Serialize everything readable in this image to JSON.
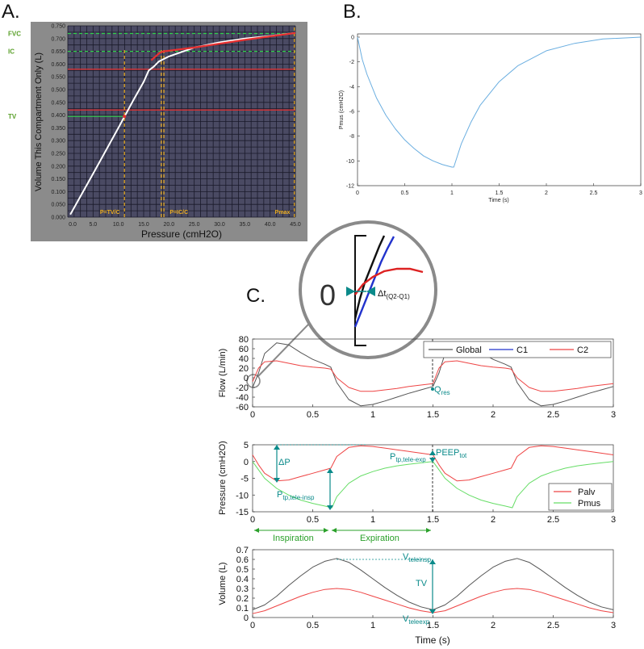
{
  "panels": {
    "a": {
      "letter": "A."
    },
    "b": {
      "letter": "B."
    },
    "c": {
      "letter": "C."
    }
  },
  "colors": {
    "panel_a_bg": "#4a4a63",
    "panel_a_frame": "#8b8b8b",
    "grid_a": "#1a1a2a",
    "red": "#e83030",
    "green": "#2fd04a",
    "orange": "#f0b020",
    "white": "#ffffff",
    "blue_line": "#6aaee0",
    "teal": "#0a8a8a",
    "global": "#555555",
    "palv": "#ee4444",
    "pmus": "#66dd66"
  },
  "chart_data": [
    {
      "id": "A",
      "type": "line",
      "title": "",
      "xlabel": "Pressure (cmH2O)",
      "ylabel": "Volume This Compartment Only (L)",
      "xlim": [
        0,
        45
      ],
      "ylim": [
        0,
        0.75
      ],
      "xticks": [
        "0.0",
        "5.0",
        "10.0",
        "15.0",
        "20.0",
        "25.0",
        "30.0",
        "35.0",
        "40.0",
        "45.0"
      ],
      "yticks": [
        "0.000",
        "0.050",
        "0.100",
        "0.150",
        "0.200",
        "0.250",
        "0.300",
        "0.350",
        "0.400",
        "0.450",
        "0.500",
        "0.550",
        "0.600",
        "0.650",
        "0.700",
        "0.750"
      ],
      "side_labels": [
        {
          "text": "FVC",
          "y": 0.72
        },
        {
          "text": "IC",
          "y": 0.65
        },
        {
          "text": "TV",
          "y": 0.395
        }
      ],
      "markers": [
        {
          "text": "P=TV/C",
          "x": 11.2
        },
        {
          "text": "P=IC/C",
          "x": 18.8
        },
        {
          "text": "Pmax",
          "x": 44.5
        }
      ],
      "series": [
        {
          "name": "compliance curve",
          "color": "white",
          "x": [
            0.5,
            5,
            10,
            13,
            15,
            16,
            17,
            18,
            20,
            25,
            30,
            35,
            40,
            45
          ],
          "y": [
            0.01,
            0.17,
            0.35,
            0.46,
            0.53,
            0.575,
            0.59,
            0.61,
            0.63,
            0.665,
            0.685,
            0.7,
            0.71,
            0.722
          ]
        },
        {
          "name": "tidal path",
          "color": "red",
          "x": [
            16.5,
            18.2,
            19.0,
            25,
            35,
            45
          ],
          "y": [
            0.615,
            0.645,
            0.65,
            0.665,
            0.695,
            0.722
          ]
        }
      ],
      "hlines": [
        {
          "y": 0.72,
          "color": "green",
          "style": "dashed"
        },
        {
          "y": 0.65,
          "color": "green",
          "style": "dashed"
        },
        {
          "y": 0.395,
          "color": "green",
          "style": "solid",
          "x_to": 11.2
        },
        {
          "y": 0.58,
          "color": "red"
        },
        {
          "y": 0.42,
          "color": "red"
        }
      ],
      "vlines": [
        {
          "x": 11.2,
          "color": "orange"
        },
        {
          "x": 18.5,
          "color": "orange"
        },
        {
          "x": 19.0,
          "color": "orange"
        },
        {
          "x": 44.8,
          "color": "orange"
        }
      ]
    },
    {
      "id": "B",
      "type": "line",
      "xlabel": "Time (s)",
      "ylabel": "Pmus (cmH2O)",
      "xlim": [
        0,
        3
      ],
      "ylim": [
        -12,
        0
      ],
      "xticks": [
        "0",
        "0.5",
        "1",
        "1.5",
        "2",
        "2.5",
        "3"
      ],
      "yticks": [
        "0",
        "-2",
        "-4",
        "-6",
        "-8",
        "-10",
        "-12"
      ],
      "series": [
        {
          "name": "Pmus",
          "color": "blue_line",
          "x": [
            0,
            0.05,
            0.1,
            0.2,
            0.3,
            0.4,
            0.5,
            0.6,
            0.7,
            0.8,
            0.9,
            1.0,
            1.02,
            1.1,
            1.2,
            1.3,
            1.5,
            1.7,
            2.0,
            2.3,
            2.6,
            3.0
          ],
          "y": [
            0,
            -1.8,
            -3.0,
            -4.9,
            -6.3,
            -7.4,
            -8.3,
            -9.0,
            -9.6,
            -10.0,
            -10.3,
            -10.5,
            -10.5,
            -8.6,
            -6.9,
            -5.5,
            -3.6,
            -2.3,
            -1.1,
            -0.5,
            -0.15,
            0
          ]
        }
      ]
    },
    {
      "id": "C-flow",
      "type": "line",
      "ylabel": "Flow (L/min)",
      "xlim": [
        0,
        3
      ],
      "ylim": [
        -60,
        80
      ],
      "xticks": [
        "0",
        "0.5",
        "1",
        "1.5",
        "2",
        "2.5",
        "3"
      ],
      "yticks": [
        "80",
        "60",
        "40",
        "20",
        "0",
        "-20",
        "-40",
        "-60"
      ],
      "legend": [
        "Global",
        "C1",
        "C2"
      ],
      "annotations": [
        {
          "text": "Q",
          "sub": "res",
          "x": 1.5,
          "y": -18
        }
      ],
      "series": [
        {
          "name": "Global",
          "color": "global",
          "x": [
            0,
            0.05,
            0.1,
            0.2,
            0.3,
            0.4,
            0.5,
            0.6,
            0.65,
            0.7,
            0.8,
            0.9,
            1.0,
            1.1,
            1.2,
            1.3,
            1.4,
            1.5,
            1.55,
            1.6,
            1.7,
            1.8,
            1.9,
            2.0,
            2.1,
            2.15,
            2.2,
            2.3,
            2.4,
            2.5,
            2.6,
            2.7,
            2.8,
            2.9,
            3.0
          ],
          "y": [
            -20,
            10,
            50,
            72,
            68,
            52,
            38,
            28,
            22,
            -10,
            -45,
            -58,
            -55,
            -48,
            -40,
            -32,
            -25,
            -18,
            10,
            50,
            72,
            68,
            52,
            38,
            28,
            22,
            -10,
            -45,
            -58,
            -55,
            -48,
            -40,
            -32,
            -25,
            -18
          ]
        },
        {
          "name": "C2",
          "color": "palv",
          "x": [
            0,
            0.05,
            0.1,
            0.2,
            0.3,
            0.4,
            0.5,
            0.6,
            0.65,
            0.7,
            0.8,
            0.9,
            1.0,
            1.1,
            1.2,
            1.3,
            1.4,
            1.5,
            1.55,
            1.6,
            1.7,
            1.8,
            1.9,
            2.0,
            2.1,
            2.15,
            2.2,
            2.3,
            2.4,
            2.5,
            2.6,
            2.7,
            2.8,
            2.9,
            3.0
          ],
          "y": [
            -8,
            20,
            33,
            35,
            30,
            25,
            22,
            20,
            18,
            0,
            -20,
            -28,
            -28,
            -25,
            -22,
            -18,
            -15,
            -12,
            20,
            33,
            35,
            30,
            25,
            22,
            20,
            18,
            0,
            -20,
            -28,
            -28,
            -25,
            -22,
            -18,
            -15,
            -12
          ]
        }
      ]
    },
    {
      "id": "C-pressure",
      "type": "line",
      "ylabel": "Pressure (cmH2O)",
      "xlim": [
        0,
        3
      ],
      "ylim": [
        -15,
        5
      ],
      "xticks": [
        "0",
        "0.5",
        "1",
        "1.5",
        "2",
        "2.5",
        "3"
      ],
      "yticks": [
        "5",
        "0",
        "-5",
        "-10",
        "-15"
      ],
      "legend": [
        "Palv",
        "Pmus"
      ],
      "annotations": [
        {
          "text": "ΔP"
        },
        {
          "text": "P",
          "sub": "tp,tele-exp"
        },
        {
          "text": "PEEP",
          "sub": "tot"
        },
        {
          "text": "P",
          "sub": "tp,tele-insp"
        }
      ],
      "phases": [
        {
          "text": "Inspiration",
          "from": 0,
          "to": 0.65
        },
        {
          "text": "Expiration",
          "from": 0.65,
          "to": 1.5
        }
      ],
      "series": [
        {
          "name": "Palv",
          "color": "palv",
          "x": [
            0,
            0.05,
            0.1,
            0.2,
            0.3,
            0.4,
            0.5,
            0.6,
            0.65,
            0.7,
            0.8,
            0.9,
            1.0,
            1.1,
            1.2,
            1.3,
            1.4,
            1.5,
            1.55,
            1.6,
            1.7,
            1.8,
            1.9,
            2.0,
            2.1,
            2.15,
            2.2,
            2.3,
            2.4,
            2.5,
            2.6,
            2.7,
            2.8,
            2.9,
            3.0
          ],
          "y": [
            2,
            -1,
            -3.5,
            -5.8,
            -5.5,
            -4.5,
            -3.5,
            -2.5,
            -2,
            1.5,
            4.2,
            4.7,
            4.5,
            4,
            3.5,
            3,
            2.5,
            2,
            -1,
            -3.5,
            -5.8,
            -5.5,
            -4.5,
            -3.5,
            -2.5,
            -2,
            1.5,
            4.2,
            4.7,
            4.5,
            4,
            3.5,
            3,
            2.5,
            2
          ]
        },
        {
          "name": "Pmus",
          "color": "pmus",
          "x": [
            0,
            0.05,
            0.1,
            0.2,
            0.3,
            0.4,
            0.5,
            0.6,
            0.66,
            0.7,
            0.8,
            0.9,
            1.0,
            1.1,
            1.2,
            1.3,
            1.4,
            1.5,
            1.55,
            1.6,
            1.7,
            1.8,
            1.9,
            2.0,
            2.1,
            2.16,
            2.2,
            2.3,
            2.4,
            2.5,
            2.6,
            2.7,
            2.8,
            2.9,
            3.0
          ],
          "y": [
            0,
            -2.5,
            -5,
            -8,
            -10,
            -11.5,
            -12.5,
            -13.3,
            -13.8,
            -10.5,
            -6.5,
            -4.3,
            -3,
            -2,
            -1.3,
            -0.8,
            -0.4,
            0,
            -2.5,
            -5,
            -8,
            -10,
            -11.5,
            -12.5,
            -13.3,
            -13.8,
            -10.5,
            -6.5,
            -4.3,
            -3,
            -2,
            -1.3,
            -0.8,
            -0.4,
            0
          ]
        }
      ]
    },
    {
      "id": "C-volume",
      "type": "line",
      "xlabel": "Time (s)",
      "ylabel": "Volume (L)",
      "xlim": [
        0,
        3
      ],
      "ylim": [
        0,
        0.7
      ],
      "xticks": [
        "0",
        "0.5",
        "1",
        "1.5",
        "2",
        "2.5",
        "3"
      ],
      "yticks": [
        "0.7",
        "0.6",
        "0.5",
        "0.4",
        "0.3",
        "0.2",
        "0.1",
        "0"
      ],
      "annotations": [
        {
          "text": "V",
          "sub": "teleinsp"
        },
        {
          "text": "TV"
        },
        {
          "text": "V",
          "sub": "teleexp"
        }
      ],
      "series": [
        {
          "name": "Global",
          "color": "global",
          "x": [
            0,
            0.1,
            0.2,
            0.3,
            0.4,
            0.5,
            0.6,
            0.7,
            0.8,
            0.9,
            1.0,
            1.1,
            1.2,
            1.3,
            1.4,
            1.5,
            1.6,
            1.7,
            1.8,
            1.9,
            2.0,
            2.1,
            2.2,
            2.3,
            2.4,
            2.5,
            2.6,
            2.7,
            2.8,
            2.9,
            3.0
          ],
          "y": [
            0.08,
            0.13,
            0.22,
            0.33,
            0.43,
            0.52,
            0.58,
            0.61,
            0.57,
            0.49,
            0.4,
            0.31,
            0.23,
            0.16,
            0.11,
            0.08,
            0.13,
            0.22,
            0.33,
            0.43,
            0.52,
            0.58,
            0.61,
            0.57,
            0.49,
            0.4,
            0.31,
            0.23,
            0.16,
            0.11,
            0.08
          ]
        },
        {
          "name": "C2",
          "color": "palv",
          "x": [
            0,
            0.1,
            0.2,
            0.3,
            0.4,
            0.5,
            0.6,
            0.7,
            0.8,
            0.9,
            1.0,
            1.1,
            1.2,
            1.3,
            1.4,
            1.5,
            1.6,
            1.7,
            1.8,
            1.9,
            2.0,
            2.1,
            2.2,
            2.3,
            2.4,
            2.5,
            2.6,
            2.7,
            2.8,
            2.9,
            3.0
          ],
          "y": [
            0.04,
            0.07,
            0.12,
            0.17,
            0.22,
            0.26,
            0.29,
            0.3,
            0.29,
            0.26,
            0.22,
            0.18,
            0.14,
            0.1,
            0.07,
            0.05,
            0.07,
            0.12,
            0.17,
            0.22,
            0.26,
            0.29,
            0.3,
            0.29,
            0.26,
            0.22,
            0.18,
            0.14,
            0.1,
            0.07,
            0.05
          ]
        }
      ]
    }
  ],
  "inset": {
    "zero_label": "0",
    "delta_label": "Δt",
    "delta_sub": "(Q2-Q1)"
  }
}
